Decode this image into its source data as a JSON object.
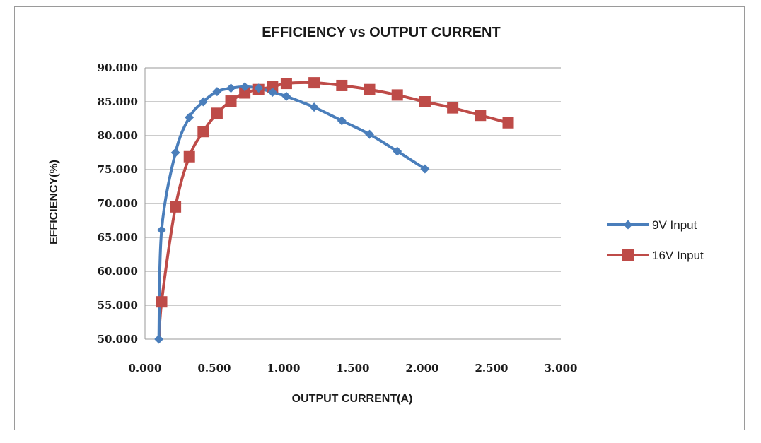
{
  "chart_data": {
    "type": "line",
    "title": "EFFICIENCY vs OUTPUT CURRENT",
    "xlabel": "OUTPUT CURRENT(A)",
    "ylabel": "EFFICIENCY(%)",
    "xlim": [
      0,
      3
    ],
    "ylim": [
      50,
      90
    ],
    "x_ticks": [
      "0.000",
      "0.500",
      "1.000",
      "1.500",
      "2.000",
      "2.500",
      "3.000"
    ],
    "y_ticks": [
      "90.000",
      "85.000",
      "80.000",
      "75.000",
      "70.000",
      "65.000",
      "60.000",
      "55.000",
      "50.000"
    ],
    "grid": "horizontal",
    "legend_position": "right",
    "series": [
      {
        "name": "9V Input",
        "color": "#4a7ebb",
        "marker": "diamond",
        "points": [
          [
            0.1,
            50
          ],
          [
            0.12,
            66.1
          ],
          [
            0.22,
            77.5
          ],
          [
            0.32,
            82.7
          ],
          [
            0.42,
            85.0
          ],
          [
            0.52,
            86.5
          ],
          [
            0.62,
            87.0
          ],
          [
            0.72,
            87.2
          ],
          [
            0.82,
            87.0
          ],
          [
            0.92,
            86.4
          ],
          [
            1.02,
            85.8
          ],
          [
            1.22,
            84.2
          ],
          [
            1.42,
            82.2
          ],
          [
            1.62,
            80.2
          ],
          [
            1.82,
            77.7
          ],
          [
            2.02,
            75.1
          ]
        ]
      },
      {
        "name": "16V Input",
        "color": "#be4b48",
        "marker": "square",
        "points": [
          [
            0.1,
            49.0
          ],
          [
            0.12,
            55.5
          ],
          [
            0.22,
            69.5
          ],
          [
            0.32,
            76.9
          ],
          [
            0.42,
            80.6
          ],
          [
            0.52,
            83.3
          ],
          [
            0.62,
            85.1
          ],
          [
            0.72,
            86.3
          ],
          [
            0.82,
            86.8
          ],
          [
            0.92,
            87.2
          ],
          [
            1.02,
            87.7
          ],
          [
            1.22,
            87.8
          ],
          [
            1.42,
            87.4
          ],
          [
            1.62,
            86.8
          ],
          [
            1.82,
            86.0
          ],
          [
            2.02,
            85.0
          ],
          [
            2.22,
            84.1
          ],
          [
            2.42,
            83.0
          ],
          [
            2.62,
            81.9
          ]
        ]
      }
    ]
  }
}
